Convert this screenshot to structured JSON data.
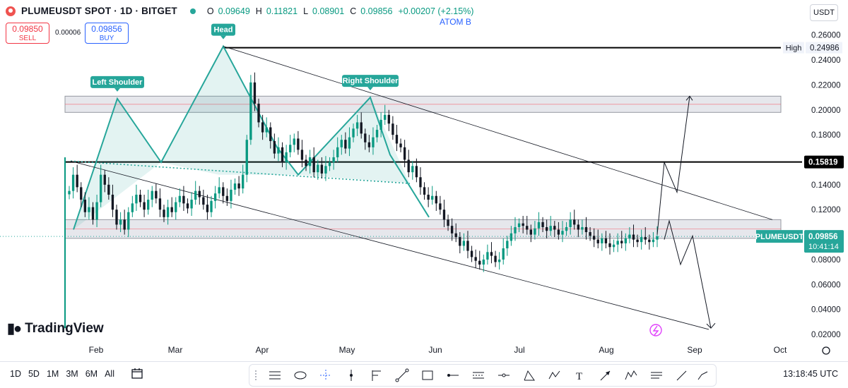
{
  "header": {
    "symbol": "PLUMEUSDT SPOT · 1D · BITGET",
    "ohlc": [
      {
        "k": "O",
        "v": "0.09649"
      },
      {
        "k": "H",
        "v": "0.11821"
      },
      {
        "k": "L",
        "v": "0.08901"
      },
      {
        "k": "C",
        "v": "0.09856"
      },
      {
        "k": "",
        "v": "+0.00207 (+2.15%)"
      }
    ]
  },
  "trade": {
    "sell_price": "0.09850",
    "sell_label": "SELL",
    "spread": "0.00006",
    "buy_price": "0.09856",
    "buy_label": "BUY"
  },
  "indicator_label": "ATOM B",
  "currency": "USDT",
  "brand": "TradingView",
  "colors": {
    "up": "#089981",
    "down": "#131722",
    "pattern": "#26a69a",
    "price": "#26a69a"
  },
  "chart_data": {
    "type": "candlestick",
    "ylim": [
      0.0,
      0.27
    ],
    "y_ticks": [
      "0.02000",
      "0.04000",
      "0.06000",
      "0.08000",
      "0.10000",
      "0.12000",
      "0.14000",
      "0.16000",
      "0.18000",
      "0.20000",
      "0.22000",
      "0.24000",
      "0.26000"
    ],
    "x_ticks": [
      "Feb",
      "Mar",
      "Apr",
      "May",
      "Jun",
      "Jul",
      "Aug",
      "Sep",
      "Oct"
    ],
    "price_labels": {
      "high_text": "High",
      "high_value": "0.24986",
      "level_value": "0.15819",
      "current_symbol": "PLUMEUSDT",
      "current_value": "0.09856",
      "countdown": "10:41:14"
    },
    "levels": {
      "high": 0.24986,
      "key": 0.15819,
      "current": 0.09856
    },
    "zones": [
      {
        "top": 0.211,
        "bottom": 0.198
      },
      {
        "top": 0.112,
        "bottom": 0.097
      }
    ],
    "annotations": [
      "Left Shoulder",
      "Head",
      "Right Shoulder"
    ],
    "closes": [
      0.135,
      0.148,
      0.138,
      0.128,
      0.118,
      0.122,
      0.112,
      0.126,
      0.148,
      0.14,
      0.132,
      0.12,
      0.108,
      0.112,
      0.104,
      0.118,
      0.125,
      0.132,
      0.126,
      0.12,
      0.128,
      0.135,
      0.129,
      0.12,
      0.114,
      0.122,
      0.118,
      0.126,
      0.131,
      0.125,
      0.121,
      0.128,
      0.135,
      0.13,
      0.124,
      0.118,
      0.127,
      0.133,
      0.138,
      0.131,
      0.127,
      0.136,
      0.141,
      0.137,
      0.148,
      0.176,
      0.222,
      0.205,
      0.19,
      0.182,
      0.186,
      0.175,
      0.165,
      0.17,
      0.158,
      0.166,
      0.172,
      0.177,
      0.168,
      0.16,
      0.155,
      0.162,
      0.15,
      0.156,
      0.149,
      0.155,
      0.158,
      0.162,
      0.17,
      0.176,
      0.169,
      0.178,
      0.185,
      0.19,
      0.181,
      0.174,
      0.17,
      0.178,
      0.184,
      0.192,
      0.196,
      0.189,
      0.18,
      0.173,
      0.17,
      0.16,
      0.15,
      0.155,
      0.146,
      0.138,
      0.132,
      0.128,
      0.131,
      0.125,
      0.12,
      0.112,
      0.107,
      0.101,
      0.098,
      0.091,
      0.095,
      0.087,
      0.082,
      0.079,
      0.076,
      0.08,
      0.086,
      0.083,
      0.078,
      0.08,
      0.089,
      0.095,
      0.101,
      0.106,
      0.109,
      0.107,
      0.104,
      0.1,
      0.105,
      0.11,
      0.106,
      0.103,
      0.107,
      0.104,
      0.1,
      0.103,
      0.106,
      0.112,
      0.108,
      0.104,
      0.106,
      0.102,
      0.099,
      0.096,
      0.093,
      0.097,
      0.093,
      0.09,
      0.092,
      0.095,
      0.093,
      0.097,
      0.1,
      0.096,
      0.094,
      0.098,
      0.096,
      0.094,
      0.096,
      0.0986
    ]
  }
}
